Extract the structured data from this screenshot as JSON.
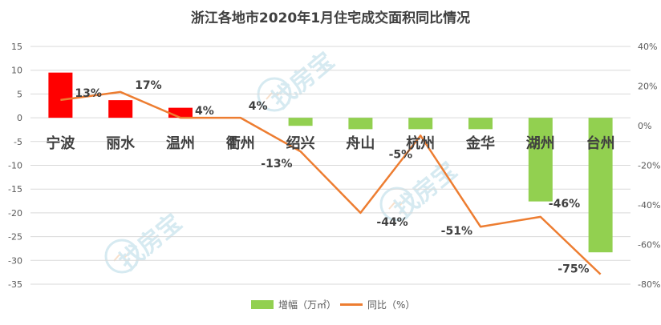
{
  "chart_data": {
    "type": "bar",
    "title": "浙江各地市2020年1月住宅成交面积同比情况",
    "categories": [
      "宁波",
      "丽水",
      "温州",
      "衢州",
      "绍兴",
      "舟山",
      "杭州",
      "金华",
      "湖州",
      "台州"
    ],
    "series": [
      {
        "name": "增幅（万㎡）",
        "type": "bar",
        "axis": "left",
        "values": [
          9.5,
          3.7,
          2.1,
          0,
          -1.7,
          -2.4,
          -2.4,
          -2.4,
          -17.6,
          -28.3
        ]
      },
      {
        "name": "同比（%）",
        "type": "line",
        "axis": "right",
        "values": [
          13,
          17,
          4,
          4,
          -13,
          -44,
          -5,
          -51,
          -46,
          -75
        ]
      }
    ],
    "point_labels": [
      "13%",
      "17%",
      "4%",
      "4%",
      "-13%",
      "-44%",
      "-5%",
      "-51%",
      "-46%",
      "-75%"
    ],
    "y_left": {
      "min": -35,
      "max": 15,
      "step": 5,
      "ticks": [
        "15",
        "10",
        "5",
        "0",
        "-5",
        "-10",
        "-15",
        "-20",
        "-25",
        "-30",
        "-35"
      ]
    },
    "y_right": {
      "min": -80,
      "max": 40,
      "step": 20,
      "ticks": [
        "40%",
        "20%",
        "0%",
        "-20%",
        "-40%",
        "-60%",
        "-80%"
      ]
    },
    "grid": true,
    "legend_position": "bottom",
    "watermark_text": "找房宝",
    "colors": {
      "bar_positive": "#ff0000",
      "bar_negative": "#92d050",
      "line": "#ed7d31",
      "grid": "#d9d9d9",
      "text": "#404040",
      "tick_text": "#595959",
      "watermark": "#b5d9e6"
    }
  }
}
